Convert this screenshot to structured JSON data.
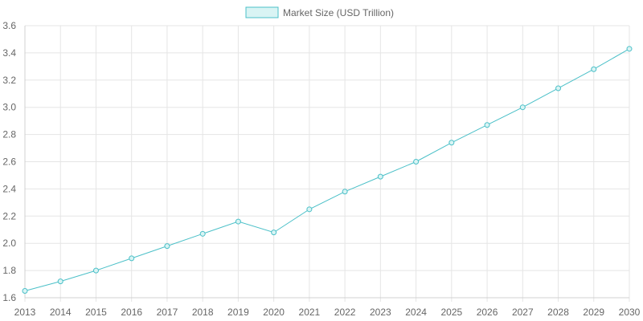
{
  "chart_data": {
    "type": "line",
    "title": "",
    "xlabel": "",
    "ylabel": "",
    "categories": [
      "2013",
      "2014",
      "2015",
      "2016",
      "2017",
      "2018",
      "2019",
      "2020",
      "2021",
      "2022",
      "2023",
      "2024",
      "2025",
      "2026",
      "2027",
      "2028",
      "2029",
      "2030"
    ],
    "series": [
      {
        "name": "Market Size (USD Trillion)",
        "values": [
          1.65,
          1.72,
          1.8,
          1.89,
          1.98,
          2.07,
          2.16,
          2.08,
          2.25,
          2.38,
          2.49,
          2.6,
          2.74,
          2.87,
          3.0,
          3.14,
          3.28,
          3.43
        ],
        "stroke_color": "#4bc0c8",
        "fill_color": "#d9f4f4"
      }
    ],
    "ylim": [
      1.6,
      3.6
    ],
    "yticks": [
      "1.6",
      "1.8",
      "2.0",
      "2.2",
      "2.4",
      "2.6",
      "2.8",
      "3.0",
      "3.2",
      "3.4",
      "3.6"
    ],
    "grid": true,
    "legend_position": "top-center"
  }
}
